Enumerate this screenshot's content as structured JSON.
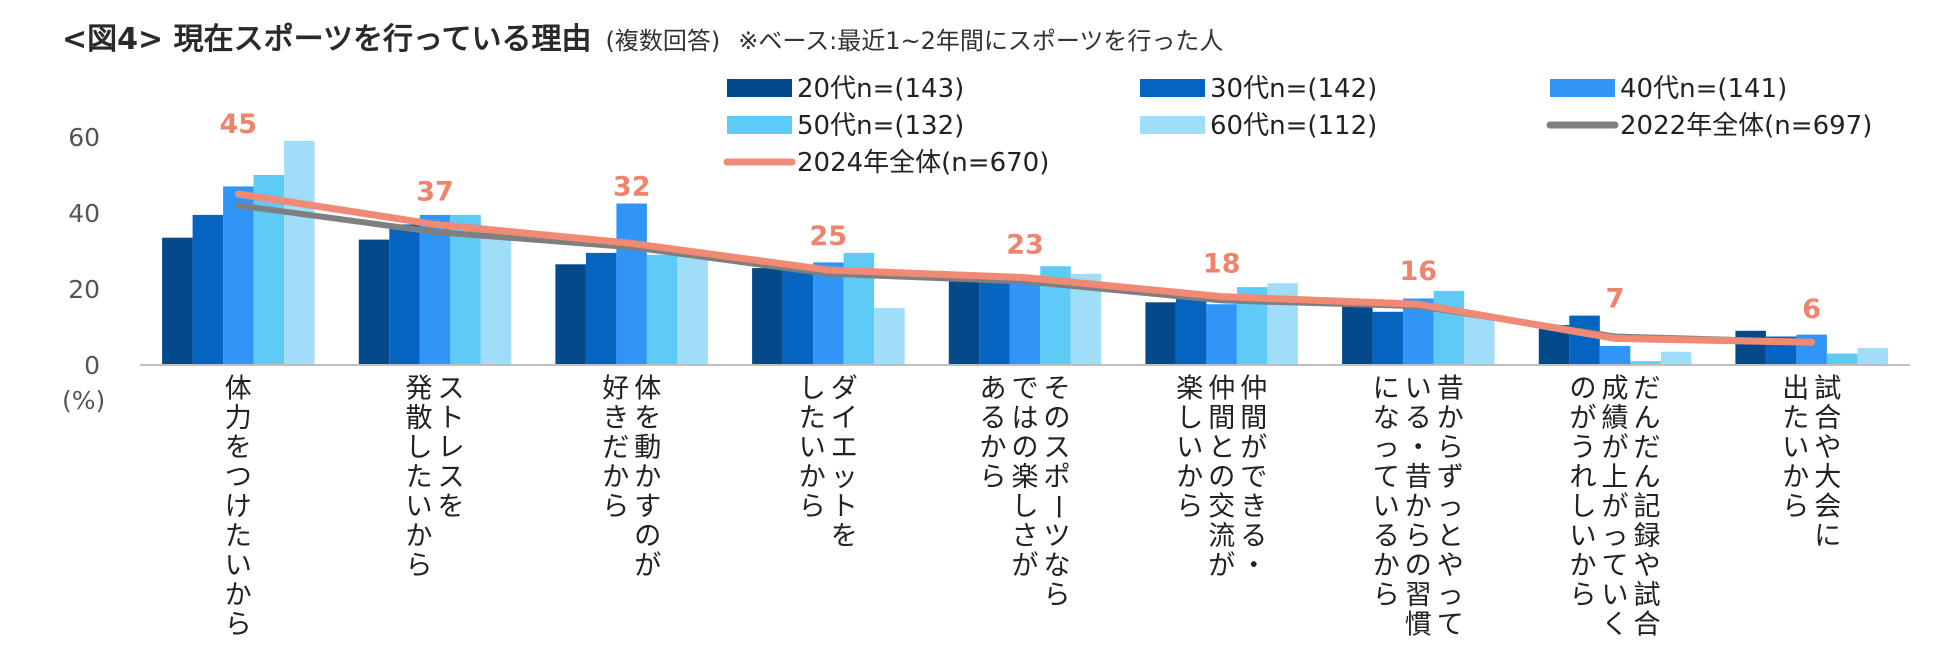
{
  "title": {
    "main": "<図4> 現在スポーツを行っている理由",
    "sub": "(複数回答)",
    "note": "※ベース:最近1~2年間にスポーツを行った人"
  },
  "chart_data": {
    "type": "bar",
    "ylabel": "(%)",
    "ylim": [
      0,
      60
    ],
    "yticks": [
      0,
      20,
      40,
      60
    ],
    "categories": [
      [
        "体力をつけたいから"
      ],
      [
        "ストレスを",
        "発散したいから"
      ],
      [
        "体を動かすのが",
        "好きだから"
      ],
      [
        "ダイエットを",
        "したいから"
      ],
      [
        "そのスポーツなら",
        "ではの楽しさが",
        "あるから"
      ],
      [
        "仲間ができる・",
        "仲間との交流が",
        "楽しいから"
      ],
      [
        "昔からずっとやって",
        "いる・昔からの習慣",
        "になっているから"
      ],
      [
        "だんだん記録や試合",
        "成績が上がっていく",
        "のがうれしいから"
      ],
      [
        "試合や大会に",
        "出たいから"
      ]
    ],
    "series": [
      {
        "name": "20代n=(143)",
        "color": "#044a8a",
        "values": [
          33.5,
          33,
          26.5,
          25.5,
          23,
          16.5,
          15.5,
          10.5,
          9
        ]
      },
      {
        "name": "30代n=(142)",
        "color": "#0564c0",
        "values": [
          39.5,
          37,
          29.5,
          25,
          22,
          17.5,
          14,
          13,
          7.5
        ]
      },
      {
        "name": "40代n=(141)",
        "color": "#2f95f7",
        "values": [
          47,
          39.5,
          42.5,
          27,
          22.5,
          16,
          17.5,
          5,
          8
        ]
      },
      {
        "name": "50代n=(132)",
        "color": "#5ecbf7",
        "values": [
          50,
          39.5,
          29,
          29.5,
          26,
          20.5,
          19.5,
          1,
          3
        ]
      },
      {
        "name": "60代n=(112)",
        "color": "#9fddf9",
        "values": [
          59,
          35.5,
          30,
          15,
          24,
          21.5,
          13,
          3.5,
          4.5
        ]
      }
    ],
    "lines": [
      {
        "name": "2022年全体(n=697)",
        "color": "#7f7f7f",
        "values": [
          42,
          35,
          31,
          24,
          22,
          17,
          15.5,
          7.5,
          6
        ]
      },
      {
        "name": "2024年全体(n=670)",
        "color": "#f08a74",
        "values": [
          45,
          37,
          32,
          25,
          23,
          18,
          16,
          7,
          6
        ]
      }
    ],
    "data_labels": [
      "45",
      "37",
      "32",
      "25",
      "23",
      "18",
      "16",
      "7",
      "6"
    ]
  }
}
